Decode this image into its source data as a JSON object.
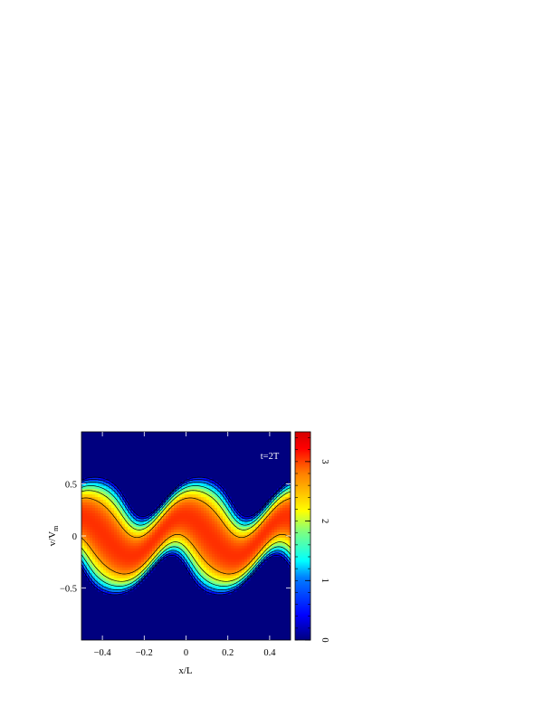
{
  "chart_data": {
    "type": "heatmap",
    "annotation": "t=2T",
    "xlabel": "x/L",
    "ylabel_main": "v/V",
    "ylabel_sub": "m",
    "xlim": [
      -0.5,
      0.5
    ],
    "ylim": [
      -1.0,
      1.0
    ],
    "x_ticks": [
      -0.4,
      -0.2,
      0,
      0.2,
      0.4
    ],
    "x_tick_labels": [
      "−0.4",
      "−0.2",
      "0",
      "0.2",
      "0.4"
    ],
    "y_ticks": [
      0.5,
      0,
      -0.5
    ],
    "y_tick_labels": [
      "0.5",
      "0",
      "−0.5"
    ],
    "colorbar": {
      "range": [
        0,
        3.5
      ],
      "ticks": [
        0,
        1,
        2,
        3
      ],
      "tick_labels": [
        "0",
        "1",
        "2",
        "3"
      ]
    },
    "contour_levels": [
      0.2,
      0.6,
      1.0,
      1.5,
      2.0,
      2.5
    ],
    "colormap": [
      "#00007f",
      "#0000ff",
      "#007fff",
      "#00ffff",
      "#7fff7f",
      "#ffff00",
      "#ff7f00",
      "#ff0000",
      "#7f0000"
    ],
    "density_model": {
      "peak": 2.9,
      "wave_amplitude": 0.19,
      "wave_period_x": 0.5,
      "shear_factor": 0.42,
      "band_center_offset": 0.0,
      "band_halfwidth": 0.38,
      "edge_softness": 0.05
    }
  }
}
